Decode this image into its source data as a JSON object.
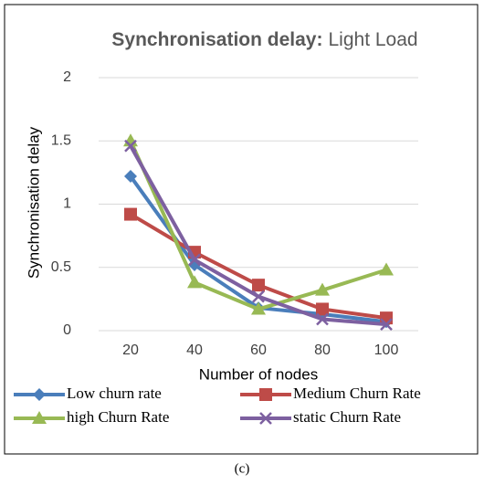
{
  "chart_data": {
    "type": "line",
    "title": [
      "Synchronisation delay:",
      "Light Load"
    ],
    "x_label": "Number of nodes",
    "y_label": "Synchronisation delay",
    "caption": "(c)",
    "categories": [
      "20",
      "40",
      "60",
      "80",
      "100"
    ],
    "series": [
      {
        "name": "Low churn rate",
        "color": "#4a7ebb",
        "marker": "diamond",
        "values": [
          1.22,
          0.52,
          0.18,
          0.13,
          0.07
        ]
      },
      {
        "name": "Medium Churn Rate",
        "color": "#be4b48",
        "marker": "square",
        "values": [
          0.92,
          0.62,
          0.36,
          0.17,
          0.1
        ]
      },
      {
        "name": "high Churn Rate",
        "color": "#98b954",
        "marker": "triangle",
        "values": [
          1.5,
          0.38,
          0.17,
          0.32,
          0.48
        ]
      },
      {
        "name": "static Churn Rate",
        "color": "#7d60a0",
        "marker": "x",
        "values": [
          1.46,
          0.56,
          0.27,
          0.09,
          0.05
        ]
      }
    ],
    "ylim": [
      0,
      2
    ],
    "yticks": [
      0,
      0.5,
      1,
      1.5,
      2
    ],
    "grid": true
  }
}
